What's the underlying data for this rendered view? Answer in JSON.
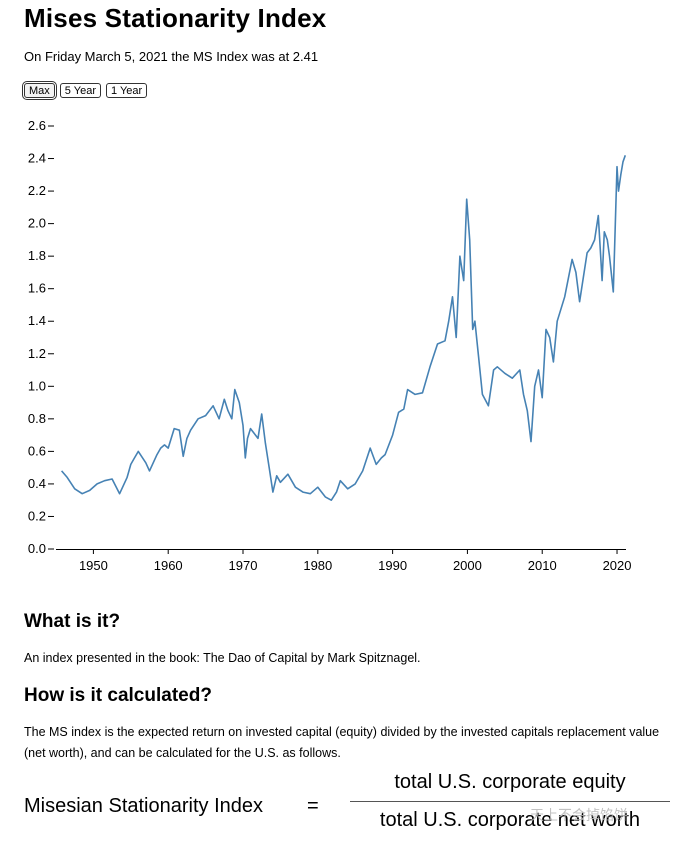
{
  "page": {
    "title": "Mises Stationarity Index",
    "subtitle": "On Friday March 5, 2021 the MS Index was at 2.41"
  },
  "range_buttons": [
    {
      "label": "Max",
      "active": true
    },
    {
      "label": "5 Year",
      "active": false
    },
    {
      "label": "1 Year",
      "active": false
    }
  ],
  "chart_data": {
    "type": "line",
    "title": "",
    "xlabel": "",
    "ylabel": "",
    "xlim": [
      1945,
      2021.2
    ],
    "ylim": [
      0,
      2.6
    ],
    "x_ticks": [
      1950,
      1960,
      1970,
      1980,
      1990,
      2000,
      2010,
      2020
    ],
    "y_ticks": [
      0.0,
      0.2,
      0.4,
      0.6,
      0.8,
      1.0,
      1.2,
      1.4,
      1.6,
      1.8,
      2.0,
      2.2,
      2.4,
      2.6
    ],
    "line_color": "#4682b4",
    "series": [
      {
        "name": "MS Index",
        "x": [
          1945.75,
          1946.5,
          1947.5,
          1948.5,
          1949.5,
          1950.5,
          1951.5,
          1952.5,
          1953.5,
          1954.5,
          1955,
          1955.5,
          1956,
          1957,
          1957.5,
          1958.5,
          1959,
          1959.5,
          1960,
          1960.8,
          1961.5,
          1962,
          1962.5,
          1963,
          1964,
          1965,
          1966,
          1966.8,
          1967.5,
          1968,
          1968.5,
          1968.9,
          1969.5,
          1970,
          1970.3,
          1970.6,
          1971,
          1972,
          1972.5,
          1973,
          1973.5,
          1974,
          1974.5,
          1975,
          1976,
          1977,
          1978,
          1979,
          1980,
          1981,
          1981.8,
          1982.5,
          1983,
          1984,
          1985,
          1986,
          1987,
          1987.8,
          1988.5,
          1989,
          1990,
          1990.8,
          1991.5,
          1992,
          1993,
          1994,
          1995,
          1996,
          1997,
          1997.5,
          1998,
          1998.5,
          1999,
          1999.5,
          1999.9,
          2000.3,
          2000.7,
          2001,
          2001.5,
          2002,
          2002.8,
          2003.5,
          2004,
          2005,
          2006,
          2007,
          2007.5,
          2008,
          2008.5,
          2009,
          2009.5,
          2010,
          2010.5,
          2011,
          2011.5,
          2012,
          2013,
          2014,
          2014.5,
          2015,
          2016,
          2016.5,
          2017,
          2017.5,
          2018,
          2018.3,
          2018.7,
          2019,
          2019.5,
          2020,
          2020.2,
          2020.5,
          2020.8,
          2021.1
        ],
        "y": [
          0.48,
          0.44,
          0.37,
          0.34,
          0.36,
          0.4,
          0.42,
          0.43,
          0.34,
          0.44,
          0.52,
          0.56,
          0.6,
          0.53,
          0.48,
          0.58,
          0.62,
          0.64,
          0.62,
          0.74,
          0.73,
          0.57,
          0.68,
          0.73,
          0.8,
          0.82,
          0.88,
          0.8,
          0.92,
          0.85,
          0.8,
          0.98,
          0.9,
          0.76,
          0.56,
          0.68,
          0.74,
          0.68,
          0.83,
          0.65,
          0.5,
          0.35,
          0.45,
          0.41,
          0.46,
          0.38,
          0.35,
          0.34,
          0.38,
          0.32,
          0.3,
          0.35,
          0.42,
          0.37,
          0.4,
          0.48,
          0.62,
          0.52,
          0.56,
          0.58,
          0.7,
          0.84,
          0.86,
          0.98,
          0.95,
          0.96,
          1.12,
          1.26,
          1.28,
          1.4,
          1.55,
          1.3,
          1.8,
          1.65,
          2.15,
          1.9,
          1.35,
          1.4,
          1.18,
          0.95,
          0.88,
          1.1,
          1.12,
          1.08,
          1.05,
          1.1,
          0.95,
          0.85,
          0.66,
          1.0,
          1.1,
          0.93,
          1.35,
          1.3,
          1.15,
          1.4,
          1.55,
          1.78,
          1.7,
          1.52,
          1.82,
          1.85,
          1.9,
          2.05,
          1.65,
          1.95,
          1.9,
          1.8,
          1.58,
          2.35,
          2.2,
          2.3,
          2.38,
          2.42
        ]
      }
    ]
  },
  "sections": {
    "what_heading": "What is it?",
    "what_text": "An index presented in the book: The Dao of Capital by Mark Spitznagel.",
    "how_heading": "How is it calculated?",
    "how_text": "The MS index is the expected return on invested capital (equity) divided by the invested capitals replacement value (net worth), and can be calculated for the U.S. as follows."
  },
  "formula": {
    "lhs": "Misesian Stationarity Index",
    "equals": "=",
    "numerator": "total U.S. corporate equity",
    "denominator": "total U.S. corporate net worth"
  },
  "watermark": "天上不会掉馅饼"
}
